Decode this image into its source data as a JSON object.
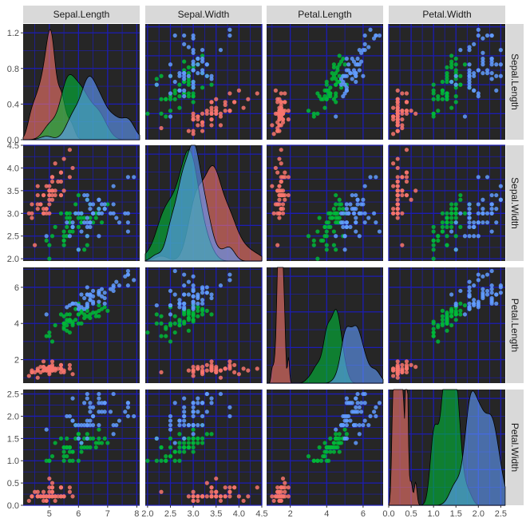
{
  "chart_data": {
    "type": "scatter-matrix",
    "variables": [
      "Sepal.Length",
      "Sepal.Width",
      "Petal.Length",
      "Petal.Width"
    ],
    "species_colors": [
      "#F8766D",
      "#00BA38",
      "#619CFF"
    ],
    "theme": {
      "panel_bg": "#262626",
      "grid_color": "#1c1cb4",
      "strip_bg": "#d9d9d9"
    },
    "axes": {
      "Sepal.Length": {
        "range": [
          4.1,
          8.1
        ],
        "ticks": [
          5,
          6,
          7,
          8
        ],
        "tick_labels": [
          "5",
          "6",
          "7",
          "8"
        ]
      },
      "Sepal.Width": {
        "range": [
          1.95,
          4.5
        ],
        "ticks": [
          2.0,
          2.5,
          3.0,
          3.5,
          4.0,
          4.5
        ],
        "tick_labels": [
          "2.0",
          "2.5",
          "3.0",
          "3.5",
          "4.0",
          "4.5"
        ]
      },
      "Petal.Length": {
        "range": [
          0.7,
          7.1
        ],
        "ticks": [
          2,
          4,
          6
        ],
        "tick_labels": [
          "2",
          "4",
          "6"
        ]
      },
      "Petal.Width": {
        "range": [
          0.0,
          2.6
        ],
        "ticks": [
          0.0,
          0.5,
          1.0,
          1.5,
          2.0,
          2.5
        ],
        "tick_labels": [
          "0.0",
          "0.5",
          "1.0",
          "1.5",
          "2.0",
          "2.5"
        ]
      }
    },
    "density_axis": {
      "range": [
        0,
        1.3
      ],
      "ticks": [
        0.0,
        0.4,
        0.8,
        1.2
      ],
      "tick_labels": [
        "0.0",
        "0.4",
        "0.8",
        "1.2"
      ]
    },
    "species": [
      {
        "Sepal.Length": [
          5.1,
          4.9,
          4.7,
          4.6,
          5.0,
          5.4,
          4.6,
          5.0,
          4.4,
          4.9,
          5.4,
          4.8,
          4.8,
          4.3,
          5.8,
          5.7,
          5.4,
          5.1,
          5.7,
          5.1,
          5.4,
          5.1,
          4.6,
          5.1,
          4.8,
          5.0,
          5.0,
          5.2,
          5.2,
          4.7,
          4.8,
          5.4,
          5.2,
          5.5,
          4.9,
          5.0,
          5.5,
          4.9,
          4.4,
          5.1,
          5.0,
          4.5,
          4.4,
          5.0,
          5.1,
          4.8,
          5.1,
          4.6,
          5.3,
          5.0
        ],
        "Sepal.Width": [
          3.5,
          3.0,
          3.2,
          3.1,
          3.6,
          3.9,
          3.4,
          3.4,
          2.9,
          3.1,
          3.7,
          3.4,
          3.0,
          3.0,
          4.0,
          4.4,
          3.9,
          3.5,
          3.8,
          3.8,
          3.4,
          3.7,
          3.6,
          3.3,
          3.4,
          3.0,
          3.4,
          3.5,
          3.4,
          3.2,
          3.1,
          3.4,
          4.1,
          4.2,
          3.1,
          3.2,
          3.5,
          3.6,
          3.0,
          3.4,
          3.5,
          2.3,
          3.2,
          3.5,
          3.8,
          3.0,
          3.8,
          3.2,
          3.7,
          3.3
        ],
        "Petal.Length": [
          1.4,
          1.4,
          1.3,
          1.5,
          1.4,
          1.7,
          1.4,
          1.5,
          1.4,
          1.5,
          1.5,
          1.6,
          1.4,
          1.1,
          1.2,
          1.5,
          1.3,
          1.4,
          1.7,
          1.5,
          1.7,
          1.5,
          1.0,
          1.7,
          1.9,
          1.6,
          1.6,
          1.5,
          1.4,
          1.6,
          1.6,
          1.5,
          1.5,
          1.4,
          1.5,
          1.2,
          1.3,
          1.4,
          1.3,
          1.5,
          1.3,
          1.3,
          1.3,
          1.6,
          1.9,
          1.4,
          1.6,
          1.4,
          1.5,
          1.4
        ],
        "Petal.Width": [
          0.2,
          0.2,
          0.2,
          0.2,
          0.2,
          0.4,
          0.3,
          0.2,
          0.2,
          0.1,
          0.2,
          0.2,
          0.1,
          0.1,
          0.2,
          0.4,
          0.4,
          0.3,
          0.3,
          0.3,
          0.2,
          0.4,
          0.2,
          0.5,
          0.2,
          0.2,
          0.4,
          0.2,
          0.2,
          0.2,
          0.2,
          0.4,
          0.1,
          0.2,
          0.2,
          0.2,
          0.2,
          0.1,
          0.2,
          0.2,
          0.3,
          0.3,
          0.2,
          0.6,
          0.4,
          0.3,
          0.2,
          0.2,
          0.2,
          0.2
        ]
      },
      {
        "Sepal.Length": [
          7.0,
          6.4,
          6.9,
          5.5,
          6.5,
          5.7,
          6.3,
          4.9,
          6.6,
          5.2,
          5.0,
          5.9,
          6.0,
          6.1,
          5.6,
          6.7,
          5.6,
          5.8,
          6.2,
          5.6,
          5.9,
          6.1,
          6.3,
          6.1,
          6.4,
          6.6,
          6.8,
          6.7,
          6.0,
          5.7,
          5.5,
          5.5,
          5.8,
          6.0,
          5.4,
          6.0,
          6.7,
          6.3,
          5.6,
          5.5,
          5.5,
          6.1,
          5.8,
          5.0,
          5.6,
          5.7,
          5.7,
          6.2,
          5.1,
          5.7
        ],
        "Sepal.Width": [
          3.2,
          3.2,
          3.1,
          2.3,
          2.8,
          2.8,
          3.3,
          2.4,
          2.9,
          2.7,
          2.0,
          3.0,
          2.2,
          2.9,
          2.9,
          3.1,
          3.0,
          2.7,
          2.2,
          2.5,
          3.2,
          2.8,
          2.5,
          2.8,
          2.9,
          3.0,
          2.8,
          3.0,
          2.9,
          2.6,
          2.4,
          2.4,
          2.7,
          2.7,
          3.0,
          3.4,
          3.1,
          2.3,
          3.0,
          2.5,
          2.6,
          3.0,
          2.6,
          2.3,
          2.7,
          3.0,
          2.9,
          2.9,
          2.5,
          2.8
        ],
        "Petal.Length": [
          4.7,
          4.5,
          4.9,
          4.0,
          4.6,
          4.5,
          4.7,
          3.3,
          4.6,
          3.9,
          3.5,
          4.2,
          4.0,
          4.7,
          3.6,
          4.4,
          4.5,
          4.1,
          4.5,
          3.9,
          4.8,
          4.0,
          4.9,
          4.7,
          4.3,
          4.4,
          4.8,
          5.0,
          4.5,
          3.5,
          3.8,
          3.7,
          3.9,
          5.1,
          4.5,
          4.5,
          4.7,
          4.4,
          4.1,
          4.0,
          4.4,
          4.6,
          4.0,
          3.3,
          4.2,
          4.2,
          4.2,
          4.3,
          3.0,
          4.1
        ],
        "Petal.Width": [
          1.4,
          1.5,
          1.5,
          1.3,
          1.5,
          1.3,
          1.6,
          1.0,
          1.3,
          1.4,
          1.0,
          1.5,
          1.0,
          1.4,
          1.3,
          1.4,
          1.5,
          1.0,
          1.5,
          1.1,
          1.8,
          1.3,
          1.5,
          1.2,
          1.3,
          1.4,
          1.4,
          1.7,
          1.5,
          1.0,
          1.1,
          1.0,
          1.2,
          1.6,
          1.5,
          1.6,
          1.5,
          1.3,
          1.3,
          1.3,
          1.2,
          1.4,
          1.2,
          1.0,
          1.3,
          1.2,
          1.3,
          1.3,
          1.1,
          1.3
        ]
      },
      {
        "Sepal.Length": [
          6.3,
          5.8,
          7.1,
          6.3,
          6.5,
          7.6,
          4.9,
          7.3,
          6.7,
          7.2,
          6.5,
          6.4,
          6.8,
          5.7,
          5.8,
          6.4,
          6.5,
          7.7,
          7.7,
          6.0,
          6.9,
          5.6,
          7.7,
          6.3,
          6.7,
          7.2,
          6.2,
          6.1,
          6.4,
          7.2,
          7.4,
          7.9,
          6.4,
          6.3,
          6.1,
          7.7,
          6.3,
          6.4,
          6.0,
          6.9,
          6.7,
          6.9,
          5.8,
          6.8,
          6.7,
          6.7,
          6.3,
          6.5,
          6.2,
          5.9
        ],
        "Sepal.Width": [
          3.3,
          2.7,
          3.0,
          2.9,
          3.0,
          3.0,
          2.5,
          2.9,
          2.5,
          3.6,
          3.2,
          2.7,
          3.0,
          2.5,
          2.8,
          3.2,
          3.0,
          3.8,
          2.6,
          2.2,
          3.2,
          2.8,
          2.8,
          2.7,
          3.3,
          3.2,
          2.8,
          3.0,
          2.8,
          3.0,
          2.8,
          3.8,
          2.8,
          2.8,
          2.6,
          3.0,
          3.4,
          3.1,
          3.0,
          3.1,
          3.1,
          3.1,
          2.7,
          3.2,
          3.3,
          3.0,
          2.5,
          3.0,
          3.4,
          3.0
        ],
        "Petal.Length": [
          6.0,
          5.1,
          5.9,
          5.6,
          5.8,
          6.6,
          4.5,
          6.3,
          5.8,
          6.1,
          5.1,
          5.3,
          5.5,
          5.0,
          5.1,
          5.3,
          5.5,
          6.7,
          6.9,
          5.0,
          5.7,
          4.9,
          6.7,
          4.9,
          5.7,
          6.0,
          4.8,
          4.9,
          5.6,
          5.8,
          6.1,
          6.4,
          5.6,
          5.1,
          5.6,
          6.1,
          5.6,
          5.5,
          4.8,
          5.4,
          5.6,
          5.1,
          5.1,
          5.9,
          5.7,
          5.2,
          5.0,
          5.2,
          5.4,
          5.1
        ],
        "Petal.Width": [
          2.5,
          1.9,
          2.1,
          1.8,
          2.2,
          2.1,
          1.7,
          1.8,
          1.8,
          2.5,
          2.0,
          1.9,
          2.1,
          2.0,
          2.4,
          2.3,
          1.8,
          2.2,
          2.3,
          1.5,
          2.3,
          2.0,
          2.0,
          1.8,
          2.1,
          1.8,
          1.8,
          1.8,
          2.1,
          1.6,
          1.9,
          2.0,
          2.2,
          1.5,
          1.4,
          2.3,
          2.4,
          1.8,
          1.8,
          2.1,
          2.4,
          2.3,
          1.9,
          2.3,
          2.5,
          2.3,
          1.9,
          2.0,
          2.3,
          1.8
        ]
      }
    ]
  }
}
